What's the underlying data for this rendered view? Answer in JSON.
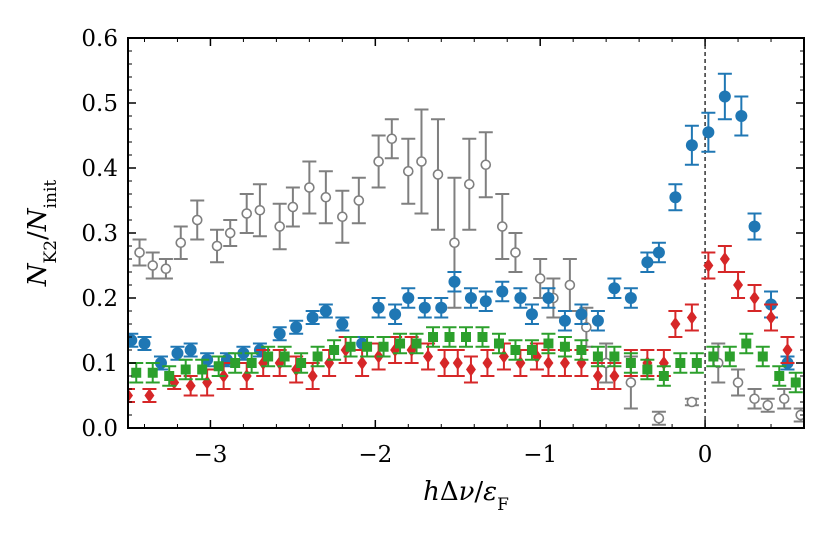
{
  "chart_data": {
    "type": "scatter",
    "title": "",
    "xlabel": "hΔν/ε_F",
    "ylabel": "N_K2/N_init",
    "xlim": [
      -3.5,
      0.6
    ],
    "ylim": [
      0.0,
      0.6
    ],
    "x_ticks": [
      -3,
      -2,
      -1,
      0
    ],
    "x_tick_labels": [
      "−3",
      "−2",
      "−1",
      "0"
    ],
    "y_ticks": [
      0.0,
      0.1,
      0.2,
      0.3,
      0.4,
      0.5,
      0.6
    ],
    "y_tick_labels": [
      "0.0",
      "0.1",
      "0.2",
      "0.3",
      "0.4",
      "0.5",
      "0.6"
    ],
    "reference_line_x": 0,
    "series": [
      {
        "name": "gray-open-circle",
        "color": "#7f7f7f",
        "marker": "open-circle",
        "x": [
          -3.43,
          -3.35,
          -3.27,
          -3.18,
          -3.08,
          -2.96,
          -2.88,
          -2.78,
          -2.7,
          -2.58,
          -2.5,
          -2.4,
          -2.3,
          -2.2,
          -2.1,
          -1.98,
          -1.9,
          -1.8,
          -1.72,
          -1.62,
          -1.52,
          -1.43,
          -1.33,
          -1.23,
          -1.15,
          -1.0,
          -0.92,
          -0.82,
          -0.72,
          -0.6,
          -0.45,
          -0.28,
          -0.08,
          0.08,
          0.2,
          0.3,
          0.38,
          0.48,
          0.58
        ],
        "y": [
          0.27,
          0.25,
          0.245,
          0.285,
          0.32,
          0.28,
          0.3,
          0.33,
          0.335,
          0.31,
          0.34,
          0.37,
          0.355,
          0.325,
          0.35,
          0.41,
          0.445,
          0.395,
          0.41,
          0.39,
          0.285,
          0.375,
          0.405,
          0.31,
          0.27,
          0.23,
          0.2,
          0.22,
          0.155,
          0.1,
          0.07,
          0.015,
          0.04,
          0.1,
          0.07,
          0.045,
          0.035,
          0.045,
          0.02
        ],
        "err": [
          0.02,
          0.02,
          0.015,
          0.025,
          0.03,
          0.025,
          0.02,
          0.03,
          0.04,
          0.035,
          0.03,
          0.04,
          0.04,
          0.04,
          0.035,
          0.04,
          0.03,
          0.05,
          0.08,
          0.085,
          0.1,
          0.07,
          0.05,
          0.05,
          0.03,
          0.03,
          0.03,
          0.04,
          0.03,
          0.03,
          0.04,
          0.01,
          0.005,
          0.03,
          0.02,
          0.015,
          0.01,
          0.015,
          0.01
        ]
      },
      {
        "name": "blue-filled-circle",
        "color": "#1f77b4",
        "marker": "circle",
        "x": [
          -3.48,
          -3.4,
          -3.3,
          -3.2,
          -3.12,
          -3.02,
          -2.9,
          -2.8,
          -2.7,
          -2.58,
          -2.48,
          -2.38,
          -2.3,
          -2.2,
          -2.08,
          -1.98,
          -1.88,
          -1.8,
          -1.7,
          -1.6,
          -1.52,
          -1.42,
          -1.33,
          -1.23,
          -1.12,
          -1.05,
          -0.95,
          -0.85,
          -0.75,
          -0.65,
          -0.55,
          -0.45,
          -0.35,
          -0.28,
          -0.18,
          -0.08,
          0.02,
          0.12,
          0.22,
          0.3,
          0.4,
          0.5
        ],
        "y": [
          0.135,
          0.13,
          0.1,
          0.115,
          0.12,
          0.105,
          0.105,
          0.115,
          0.12,
          0.145,
          0.155,
          0.17,
          0.18,
          0.16,
          0.13,
          0.185,
          0.175,
          0.2,
          0.185,
          0.185,
          0.225,
          0.2,
          0.195,
          0.21,
          0.2,
          0.175,
          0.2,
          0.165,
          0.175,
          0.165,
          0.215,
          0.2,
          0.255,
          0.27,
          0.355,
          0.435,
          0.455,
          0.51,
          0.48,
          0.31,
          0.19,
          0.1
        ],
        "err": [
          0.01,
          0.01,
          0.01,
          0.01,
          0.01,
          0.01,
          0.01,
          0.01,
          0.01,
          0.01,
          0.01,
          0.01,
          0.01,
          0.01,
          0.01,
          0.015,
          0.015,
          0.015,
          0.015,
          0.015,
          0.015,
          0.015,
          0.015,
          0.015,
          0.015,
          0.015,
          0.015,
          0.015,
          0.015,
          0.015,
          0.015,
          0.015,
          0.015,
          0.015,
          0.02,
          0.03,
          0.03,
          0.035,
          0.03,
          0.02,
          0.02,
          0.01
        ]
      },
      {
        "name": "red-diamond",
        "color": "#d62728",
        "marker": "diamond",
        "x": [
          -3.5,
          -3.37,
          -3.22,
          -3.12,
          -3.02,
          -2.92,
          -2.78,
          -2.68,
          -2.58,
          -2.48,
          -2.38,
          -2.28,
          -2.18,
          -2.08,
          -1.98,
          -1.88,
          -1.78,
          -1.68,
          -1.58,
          -1.5,
          -1.42,
          -1.32,
          -1.22,
          -1.12,
          -1.02,
          -0.95,
          -0.85,
          -0.75,
          -0.65,
          -0.55,
          -0.45,
          -0.35,
          -0.25,
          -0.18,
          -0.08,
          0.02,
          0.12,
          0.2,
          0.3,
          0.4,
          0.5
        ],
        "y": [
          0.05,
          0.05,
          0.07,
          0.065,
          0.07,
          0.08,
          0.08,
          0.1,
          0.1,
          0.09,
          0.08,
          0.1,
          0.12,
          0.1,
          0.11,
          0.12,
          0.12,
          0.11,
          0.1,
          0.1,
          0.09,
          0.1,
          0.11,
          0.1,
          0.11,
          0.1,
          0.1,
          0.1,
          0.08,
          0.08,
          0.1,
          0.1,
          0.1,
          0.16,
          0.17,
          0.25,
          0.26,
          0.22,
          0.2,
          0.17,
          0.12
        ],
        "err": [
          0.01,
          0.01,
          0.01,
          0.015,
          0.02,
          0.02,
          0.02,
          0.02,
          0.02,
          0.02,
          0.02,
          0.02,
          0.02,
          0.02,
          0.02,
          0.02,
          0.02,
          0.02,
          0.02,
          0.02,
          0.02,
          0.02,
          0.02,
          0.02,
          0.02,
          0.02,
          0.02,
          0.02,
          0.02,
          0.02,
          0.02,
          0.02,
          0.02,
          0.02,
          0.02,
          0.02,
          0.02,
          0.02,
          0.02,
          0.02,
          0.02
        ]
      },
      {
        "name": "green-square",
        "color": "#2ca02c",
        "marker": "square",
        "x": [
          -3.45,
          -3.35,
          -3.25,
          -3.15,
          -3.05,
          -2.95,
          -2.85,
          -2.75,
          -2.65,
          -2.55,
          -2.45,
          -2.35,
          -2.25,
          -2.15,
          -2.05,
          -1.95,
          -1.85,
          -1.75,
          -1.65,
          -1.55,
          -1.45,
          -1.35,
          -1.25,
          -1.15,
          -1.05,
          -0.95,
          -0.85,
          -0.75,
          -0.65,
          -0.55,
          -0.45,
          -0.35,
          -0.25,
          -0.15,
          -0.05,
          0.05,
          0.15,
          0.25,
          0.35,
          0.45,
          0.55
        ],
        "y": [
          0.085,
          0.085,
          0.08,
          0.09,
          0.09,
          0.095,
          0.1,
          0.1,
          0.11,
          0.11,
          0.1,
          0.11,
          0.12,
          0.125,
          0.125,
          0.125,
          0.13,
          0.13,
          0.14,
          0.14,
          0.14,
          0.14,
          0.13,
          0.12,
          0.12,
          0.13,
          0.125,
          0.12,
          0.11,
          0.11,
          0.1,
          0.09,
          0.08,
          0.1,
          0.1,
          0.11,
          0.11,
          0.13,
          0.11,
          0.08,
          0.07
        ],
        "err": [
          0.015,
          0.015,
          0.015,
          0.015,
          0.015,
          0.015,
          0.015,
          0.015,
          0.015,
          0.015,
          0.015,
          0.015,
          0.015,
          0.015,
          0.015,
          0.015,
          0.015,
          0.015,
          0.015,
          0.015,
          0.015,
          0.015,
          0.015,
          0.015,
          0.015,
          0.015,
          0.015,
          0.015,
          0.015,
          0.015,
          0.015,
          0.015,
          0.015,
          0.015,
          0.015,
          0.015,
          0.015,
          0.015,
          0.015,
          0.015,
          0.015
        ]
      }
    ]
  }
}
